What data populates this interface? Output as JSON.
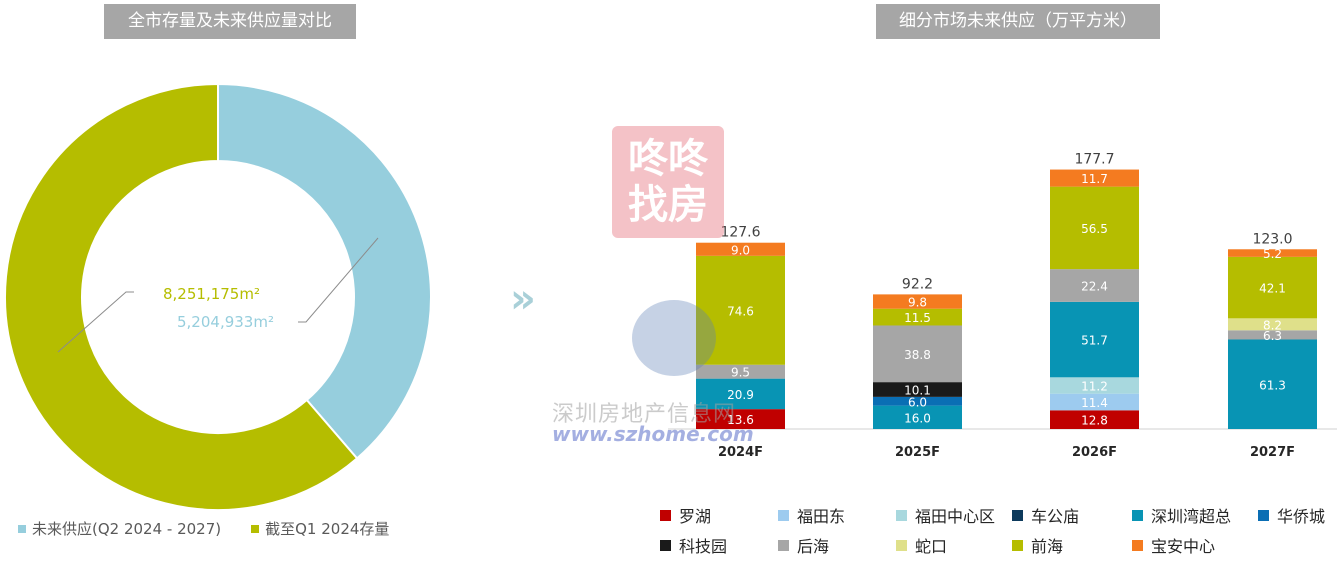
{
  "titles": {
    "left": "全市存量及未来供应量对比",
    "right": "细分市场未来供应（万平方米）"
  },
  "colors": {
    "future_supply": "#96cedd",
    "existing_stock": "#b5bd00",
    "title_bg": "#a6a6a6"
  },
  "chart_data": [
    {
      "type": "pie",
      "donut": true,
      "slices": [
        {
          "name": "未来供应(Q2 2024 - 2027)",
          "value": 5204933,
          "label": "5,204,933m²",
          "color": "#96cedd"
        },
        {
          "name": "截至Q1 2024存量",
          "value": 8251175,
          "label": "8,251,175m²",
          "color": "#b5bd00"
        }
      ],
      "legend_position": "bottom"
    },
    {
      "type": "bar",
      "stacked": true,
      "categories": [
        "2024F",
        "2025F",
        "2026F",
        "2027F"
      ],
      "totals": [
        127.6,
        92.2,
        177.7,
        123.0
      ],
      "total_labels": [
        "127.6",
        "92.2",
        "177.7",
        "123.0"
      ],
      "series": [
        {
          "name": "罗湖",
          "color": "#c00000",
          "values": [
            13.6,
            0,
            12.8,
            0
          ]
        },
        {
          "name": "福田东",
          "color": "#9dcbef",
          "values": [
            0,
            0,
            11.4,
            0
          ]
        },
        {
          "name": "福田中心区",
          "color": "#a8d8de",
          "values": [
            0,
            0,
            11.2,
            0
          ]
        },
        {
          "name": "车公庙",
          "color": "#0d3a5c",
          "values": [
            0,
            0,
            0,
            0
          ]
        },
        {
          "name": "深圳湾超总",
          "color": "#0894b4",
          "values": [
            20.9,
            16.0,
            51.7,
            61.3
          ]
        },
        {
          "name": "华侨城",
          "color": "#0a6eb4",
          "values": [
            0,
            6.0,
            0,
            0
          ]
        },
        {
          "name": "科技园",
          "color": "#1a1a1a",
          "values": [
            0,
            10.1,
            0,
            0
          ]
        },
        {
          "name": "后海",
          "color": "#a6a6a6",
          "values": [
            9.5,
            38.8,
            22.4,
            6.3
          ]
        },
        {
          "name": "蛇口",
          "color": "#dfe08a",
          "values": [
            0,
            0,
            0,
            8.2
          ]
        },
        {
          "name": "前海",
          "color": "#b5bd00",
          "values": [
            74.6,
            11.5,
            56.5,
            42.1
          ]
        },
        {
          "name": "宝安中心",
          "color": "#f47b20",
          "values": [
            9.0,
            9.8,
            11.7,
            5.2
          ]
        }
      ],
      "ylim": [
        0,
        200
      ],
      "grid": false,
      "legend_position": "bottom"
    }
  ],
  "watermark": {
    "brand_line1": "咚咚",
    "brand_line2": "找房",
    "site_name": "深圳房地产信息网",
    "site_url": "www.szhome.com",
    "arrow": "»"
  }
}
